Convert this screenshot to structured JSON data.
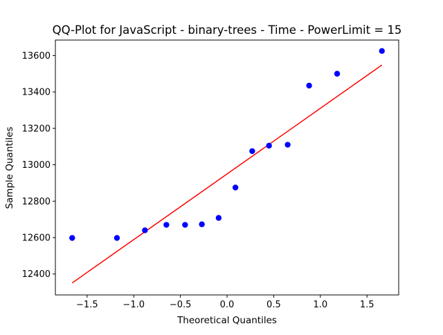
{
  "chart_data": {
    "type": "scatter",
    "title": "QQ-Plot for JavaScript - binary-trees - Time - PowerLimit = 15",
    "xlabel": "Theoretical Quantiles",
    "ylabel": "Sample Quantiles",
    "xlim": [
      -1.84,
      1.84
    ],
    "ylim": [
      12285,
      13685
    ],
    "x_ticks": [
      -1.5,
      -1.0,
      -0.5,
      0.0,
      0.5,
      1.0,
      1.5
    ],
    "x_tick_labels": [
      "−1.5",
      "−1.0",
      "−0.5",
      "0.0",
      "0.5",
      "1.0",
      "1.5"
    ],
    "y_ticks": [
      12400,
      12600,
      12800,
      13000,
      13200,
      13400,
      13600
    ],
    "y_tick_labels": [
      "12400",
      "12600",
      "12800",
      "13000",
      "13200",
      "13400",
      "13600"
    ],
    "grid": false,
    "points": {
      "color": "#0000ff",
      "x": [
        -1.66,
        -1.18,
        -0.88,
        -0.65,
        -0.45,
        -0.27,
        -0.09,
        0.09,
        0.27,
        0.45,
        0.65,
        0.88,
        1.18,
        1.66
      ],
      "y": [
        12598,
        12598,
        12640,
        12670,
        12670,
        12673,
        12708,
        12875,
        13075,
        13105,
        13110,
        13435,
        13500,
        13625
      ]
    },
    "fit_line": {
      "color": "#ff0000",
      "x": [
        -1.66,
        1.66
      ],
      "y": [
        12351,
        13548
      ]
    }
  }
}
